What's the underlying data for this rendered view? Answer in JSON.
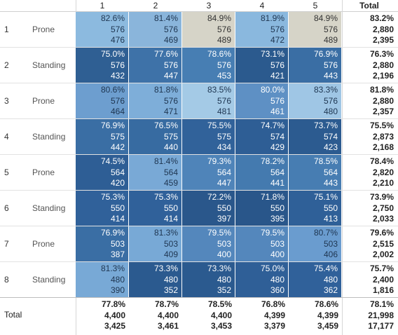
{
  "columns": [
    "1",
    "2",
    "3",
    "4",
    "5"
  ],
  "total_label": "Total",
  "rows": [
    {
      "label": "1",
      "category": "Prone",
      "cells": [
        {
          "pct": "82.6%",
          "n": "576",
          "count": "476",
          "color": "#8cbadf",
          "text": "#1e3550"
        },
        {
          "pct": "81.4%",
          "n": "576",
          "count": "469",
          "color": "#8ab5db",
          "text": "#1e3550"
        },
        {
          "pct": "84.9%",
          "n": "576",
          "count": "489",
          "color": "#d6d4c8",
          "text": "#333333"
        },
        {
          "pct": "81.9%",
          "n": "576",
          "count": "472",
          "color": "#8ab8de",
          "text": "#1e3550"
        },
        {
          "pct": "84.9%",
          "n": "576",
          "count": "489",
          "color": "#d6d4c8",
          "text": "#333333"
        }
      ],
      "total": {
        "pct": "83.2%",
        "n": "2,880",
        "count": "2,395"
      }
    },
    {
      "label": "2",
      "category": "Standing",
      "cells": [
        {
          "pct": "75.0%",
          "n": "576",
          "count": "432",
          "color": "#2f5f93",
          "text": "#ffffff"
        },
        {
          "pct": "77.6%",
          "n": "576",
          "count": "447",
          "color": "#3e72a8",
          "text": "#ffffff"
        },
        {
          "pct": "78.6%",
          "n": "576",
          "count": "453",
          "color": "#477eb3",
          "text": "#ffffff"
        },
        {
          "pct": "73.1%",
          "n": "576",
          "count": "421",
          "color": "#2b5a8e",
          "text": "#ffffff"
        },
        {
          "pct": "76.9%",
          "n": "576",
          "count": "443",
          "color": "#3a6ea4",
          "text": "#ffffff"
        }
      ],
      "total": {
        "pct": "76.3%",
        "n": "2,880",
        "count": "2,196"
      }
    },
    {
      "label": "3",
      "category": "Prone",
      "cells": [
        {
          "pct": "80.6%",
          "n": "576",
          "count": "464",
          "color": "#6d9ecf",
          "text": "#1e3550"
        },
        {
          "pct": "81.8%",
          "n": "576",
          "count": "471",
          "color": "#7eaed9",
          "text": "#1e3550"
        },
        {
          "pct": "83.5%",
          "n": "576",
          "count": "481",
          "color": "#a4cae6",
          "text": "#1e3550"
        },
        {
          "pct": "80.0%",
          "n": "576",
          "count": "461",
          "color": "#5e90c4",
          "text": "#ffffff"
        },
        {
          "pct": "83.3%",
          "n": "576",
          "count": "480",
          "color": "#9fc6e5",
          "text": "#1e3550"
        }
      ],
      "total": {
        "pct": "81.8%",
        "n": "2,880",
        "count": "2,357"
      }
    },
    {
      "label": "4",
      "category": "Standing",
      "cells": [
        {
          "pct": "76.9%",
          "n": "575",
          "count": "442",
          "color": "#3a6ea4",
          "text": "#ffffff"
        },
        {
          "pct": "76.5%",
          "n": "575",
          "count": "440",
          "color": "#376ba1",
          "text": "#ffffff"
        },
        {
          "pct": "75.5%",
          "n": "575",
          "count": "434",
          "color": "#31629a",
          "text": "#ffffff"
        },
        {
          "pct": "74.7%",
          "n": "574",
          "count": "429",
          "color": "#2e5e95",
          "text": "#ffffff"
        },
        {
          "pct": "73.7%",
          "n": "574",
          "count": "423",
          "color": "#2c5b90",
          "text": "#ffffff"
        }
      ],
      "total": {
        "pct": "75.5%",
        "n": "2,873",
        "count": "2,168"
      }
    },
    {
      "label": "5",
      "category": "Prone",
      "cells": [
        {
          "pct": "74.5%",
          "n": "564",
          "count": "420",
          "color": "#2e5e95",
          "text": "#ffffff"
        },
        {
          "pct": "81.4%",
          "n": "564",
          "count": "459",
          "color": "#79a9d6",
          "text": "#1e3550"
        },
        {
          "pct": "79.3%",
          "n": "564",
          "count": "447",
          "color": "#4f84b9",
          "text": "#ffffff"
        },
        {
          "pct": "78.2%",
          "n": "564",
          "count": "441",
          "color": "#447aaf",
          "text": "#ffffff"
        },
        {
          "pct": "78.5%",
          "n": "564",
          "count": "443",
          "color": "#477db2",
          "text": "#ffffff"
        }
      ],
      "total": {
        "pct": "78.4%",
        "n": "2,820",
        "count": "2,210"
      }
    },
    {
      "label": "6",
      "category": "Standing",
      "cells": [
        {
          "pct": "75.3%",
          "n": "550",
          "count": "414",
          "color": "#30619a",
          "text": "#ffffff"
        },
        {
          "pct": "75.3%",
          "n": "550",
          "count": "414",
          "color": "#30619a",
          "text": "#ffffff"
        },
        {
          "pct": "72.2%",
          "n": "550",
          "count": "397",
          "color": "#2a578b",
          "text": "#ffffff"
        },
        {
          "pct": "71.8%",
          "n": "550",
          "count": "395",
          "color": "#29568a",
          "text": "#ffffff"
        },
        {
          "pct": "75.1%",
          "n": "550",
          "count": "413",
          "color": "#2f6098",
          "text": "#ffffff"
        }
      ],
      "total": {
        "pct": "73.9%",
        "n": "2,750",
        "count": "2,033"
      }
    },
    {
      "label": "7",
      "category": "Prone",
      "cells": [
        {
          "pct": "76.9%",
          "n": "503",
          "count": "387",
          "color": "#3a6ea4",
          "text": "#ffffff"
        },
        {
          "pct": "81.3%",
          "n": "503",
          "count": "409",
          "color": "#78a9d6",
          "text": "#1e3550"
        },
        {
          "pct": "79.5%",
          "n": "503",
          "count": "400",
          "color": "#5487bc",
          "text": "#ffffff"
        },
        {
          "pct": "79.5%",
          "n": "503",
          "count": "400",
          "color": "#5487bc",
          "text": "#ffffff"
        },
        {
          "pct": "80.7%",
          "n": "503",
          "count": "406",
          "color": "#6a9ccf",
          "text": "#1e3550"
        }
      ],
      "total": {
        "pct": "79.6%",
        "n": "2,515",
        "count": "2,002"
      }
    },
    {
      "label": "8",
      "category": "Standing",
      "cells": [
        {
          "pct": "81.3%",
          "n": "480",
          "count": "390",
          "color": "#78a9d6",
          "text": "#1e3550"
        },
        {
          "pct": "73.3%",
          "n": "480",
          "count": "352",
          "color": "#2b5a8f",
          "text": "#ffffff"
        },
        {
          "pct": "73.3%",
          "n": "480",
          "count": "352",
          "color": "#2b5a8f",
          "text": "#ffffff"
        },
        {
          "pct": "75.0%",
          "n": "480",
          "count": "360",
          "color": "#2f5f97",
          "text": "#ffffff"
        },
        {
          "pct": "75.4%",
          "n": "480",
          "count": "362",
          "color": "#30619a",
          "text": "#ffffff"
        }
      ],
      "total": {
        "pct": "75.7%",
        "n": "2,400",
        "count": "1,816"
      }
    }
  ],
  "grand_total": {
    "label": "Total",
    "columns": [
      {
        "pct": "77.8%",
        "n": "4,400",
        "count": "3,425"
      },
      {
        "pct": "78.7%",
        "n": "4,400",
        "count": "3,461"
      },
      {
        "pct": "78.5%",
        "n": "4,400",
        "count": "3,453"
      },
      {
        "pct": "76.8%",
        "n": "4,399",
        "count": "3,379"
      },
      {
        "pct": "78.6%",
        "n": "4,399",
        "count": "3,459"
      }
    ],
    "total": {
      "pct": "78.1%",
      "n": "21,998",
      "count": "17,177"
    }
  }
}
